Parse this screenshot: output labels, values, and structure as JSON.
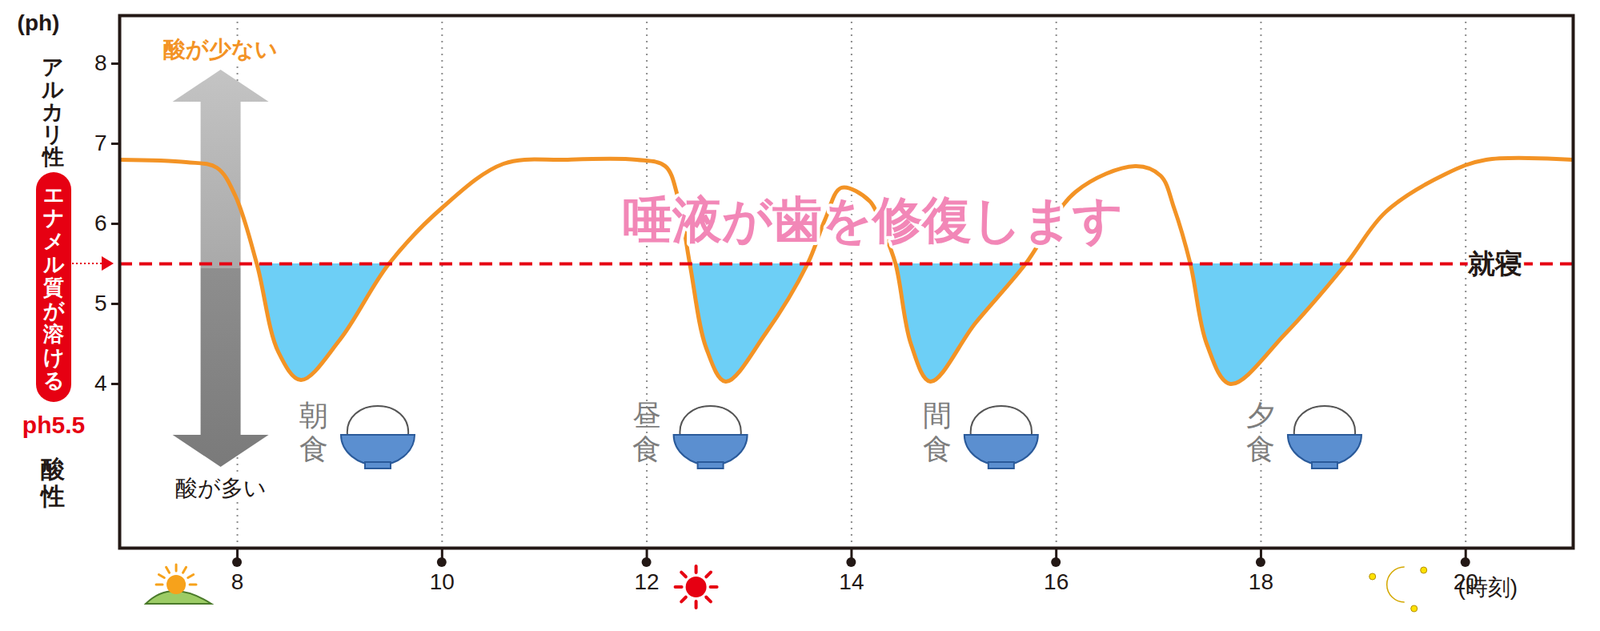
{
  "chart_data": {
    "type": "line",
    "x": [
      6.85,
      7.5,
      7.8,
      7.98,
      8.19,
      8.4,
      8.62,
      9.0,
      9.48,
      10.0,
      10.6,
      11.2,
      11.9,
      12.18,
      12.3,
      12.42,
      12.58,
      12.77,
      13.16,
      13.57,
      13.74,
      13.9,
      14.18,
      14.3,
      14.43,
      14.58,
      14.77,
      15.21,
      15.7,
      16.19,
      16.77,
      17.02,
      17.15,
      17.31,
      17.47,
      17.7,
      18.24,
      18.83,
      19.22,
      19.8,
      20.2,
      21.05
    ],
    "values": [
      6.8,
      6.77,
      6.7,
      6.35,
      5.5,
      4.4,
      4.05,
      4.55,
      5.5,
      6.2,
      6.75,
      6.8,
      6.8,
      6.72,
      6.35,
      5.5,
      4.45,
      4.03,
      4.63,
      5.5,
      6.05,
      6.45,
      6.28,
      5.95,
      5.5,
      4.5,
      4.03,
      4.76,
      5.5,
      6.4,
      6.72,
      6.6,
      6.2,
      5.5,
      4.5,
      4.0,
      4.63,
      5.5,
      6.15,
      6.62,
      6.8,
      6.8
    ],
    "color": "#f39325",
    "xlim": [
      6.85,
      21.05
    ],
    "ylim": [
      1.95,
      8.6
    ],
    "xticks": [
      8,
      10,
      12,
      14,
      16,
      18,
      20
    ],
    "yticks": [
      4,
      5,
      6,
      7,
      8
    ],
    "x_label": "(時刻)",
    "y_label": "(ph)",
    "grid": "x",
    "threshold": {
      "value": 5.5,
      "label": "ph5.5",
      "band_label": "エナメル質が溶ける",
      "color": "#e60012",
      "fill_color": "#6dcff6"
    },
    "y_side_labels": {
      "top": "アルカリ性",
      "bottom": "酸性"
    },
    "annotations": [
      {
        "text": "酸が少ない",
        "x": 7.84,
        "y": 8.18,
        "color": "#f39325"
      },
      {
        "text": "酸が多い",
        "x": 7.84,
        "y": 2.7,
        "color": "#231815"
      },
      {
        "text": "唾液が歯を修復します",
        "x": 14.21,
        "y": 6.05,
        "color": "#f287b7"
      },
      {
        "text": "就寝",
        "x": 20.29,
        "y": 5.5,
        "color": "#231815"
      }
    ],
    "meals": [
      {
        "text": "朝食",
        "x": 8.75,
        "y": 3.4
      },
      {
        "text": "昼食",
        "x": 12.0,
        "y": 3.4
      },
      {
        "text": "間食",
        "x": 14.84,
        "y": 3.4
      },
      {
        "text": "夕食",
        "x": 18.0,
        "y": 3.4
      }
    ]
  }
}
